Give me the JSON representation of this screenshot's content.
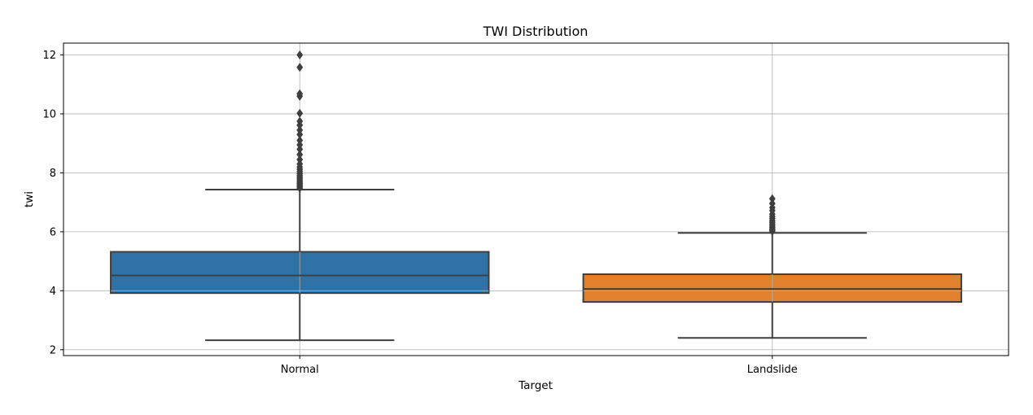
{
  "chart_data": {
    "type": "box",
    "title": "TWI Distribution",
    "xlabel": "Target",
    "ylabel": "twi",
    "ylim": [
      1.8,
      12.4
    ],
    "yticks": [
      2,
      4,
      6,
      8,
      10,
      12
    ],
    "grid": true,
    "categories": [
      "Normal",
      "Landslide"
    ],
    "boxes": [
      {
        "category": "Normal",
        "color": "#2f73a6",
        "whisker_low": 2.32,
        "q1": 3.92,
        "median": 4.52,
        "q3": 5.32,
        "whisker_high": 7.43,
        "outliers": [
          7.48,
          7.52,
          7.56,
          7.6,
          7.64,
          7.68,
          7.72,
          7.77,
          7.82,
          7.87,
          7.92,
          7.98,
          8.05,
          8.12,
          8.2,
          8.3,
          8.45,
          8.62,
          8.8,
          8.95,
          9.1,
          9.3,
          9.45,
          9.62,
          9.75,
          10.02,
          10.6,
          10.68,
          11.58,
          12.0
        ]
      },
      {
        "category": "Landslide",
        "color": "#e1812c",
        "whisker_low": 2.4,
        "q1": 3.62,
        "median": 4.06,
        "q3": 4.56,
        "whisker_high": 5.96,
        "outliers": [
          6.02,
          6.06,
          6.1,
          6.15,
          6.2,
          6.26,
          6.32,
          6.38,
          6.45,
          6.52,
          6.6,
          6.72,
          6.82,
          6.96,
          7.12
        ]
      }
    ]
  }
}
